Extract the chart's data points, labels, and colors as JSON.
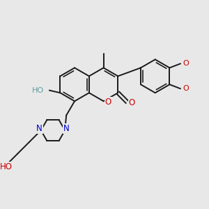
{
  "bg_color": "#e8e8e8",
  "bond_color": "#1a1a1a",
  "bond_width": 1.4,
  "figsize": [
    3.0,
    3.0
  ],
  "dpi": 100,
  "xlim": [
    0,
    12
  ],
  "ylim": [
    -1,
    11
  ],
  "atom_colors": {
    "O": "#cc0000",
    "N": "#0000cc",
    "HO_chromen": "#5f9ea0",
    "HO_bottom": "#cc0000"
  }
}
